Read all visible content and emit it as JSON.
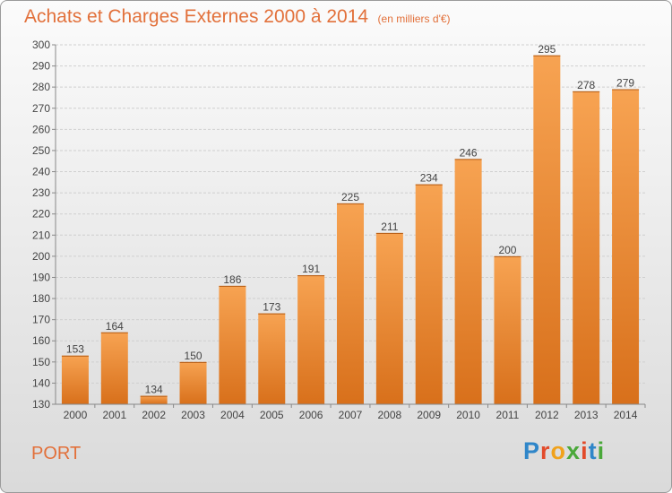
{
  "title": "Achats et Charges Externes 2000 à 2014",
  "subtitle": "(en milliers d'€)",
  "commune": "PORT",
  "brand": {
    "letters": [
      "P",
      "r",
      "o",
      "x",
      "i",
      "t",
      "i"
    ],
    "colors": [
      "#2f86c9",
      "#e24b2b",
      "#f0a21c",
      "#4aa83a",
      "#e24b2b",
      "#2f86c9",
      "#4aa83a"
    ]
  },
  "colors": {
    "bar": "#f08c2e",
    "bar_light": "#f7a352",
    "bar_dark": "#d8701b",
    "label": "#444444"
  },
  "chart_data": {
    "type": "bar",
    "categories": [
      "2000",
      "2001",
      "2002",
      "2003",
      "2004",
      "2005",
      "2006",
      "2007",
      "2008",
      "2009",
      "2010",
      "2011",
      "2012",
      "2013",
      "2014"
    ],
    "values": [
      153,
      164,
      134,
      150,
      186,
      173,
      191,
      225,
      211,
      234,
      246,
      200,
      295,
      278,
      279
    ],
    "title": "Achats et Charges Externes 2000 à 2014",
    "xlabel": "",
    "ylabel": "",
    "ylim": [
      130,
      300
    ],
    "yticks": [
      130,
      140,
      150,
      160,
      170,
      180,
      190,
      200,
      210,
      220,
      230,
      240,
      250,
      260,
      270,
      280,
      290,
      300
    ],
    "grid": true,
    "data_labels": true
  }
}
